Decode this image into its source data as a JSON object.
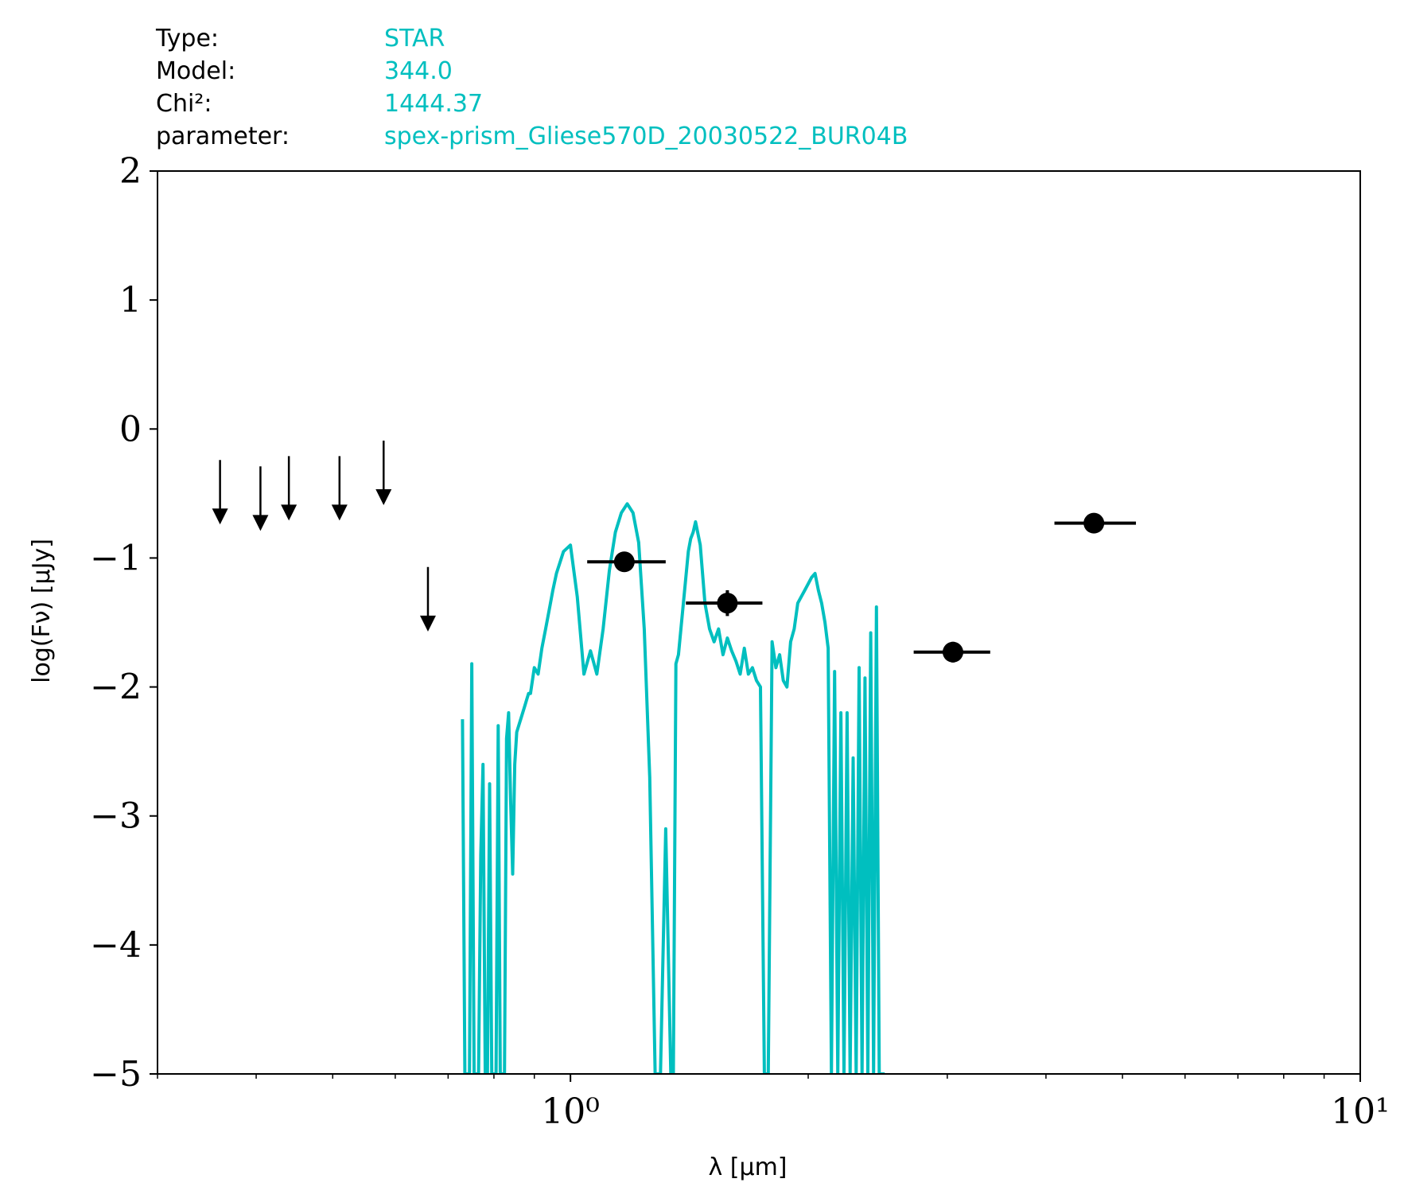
{
  "info": {
    "rows": [
      {
        "label": "Type:",
        "value": "STAR"
      },
      {
        "label": "Model:",
        "value": "344.0"
      },
      {
        "label": "Chi²:",
        "value": "1444.37"
      },
      {
        "label": "parameter:",
        "value": "spex-prism_Gliese570D_20030522_BUR04B"
      }
    ],
    "value_color": "#00bfbf"
  },
  "chart_data": {
    "type": "line",
    "title": "",
    "xlabel": "λ [μm]",
    "ylabel": "log(Fν) [μJy]",
    "xscale": "log",
    "xlim": [
      0.3,
      10
    ],
    "ylim": [
      -5,
      2
    ],
    "x_ticks": [
      {
        "value": 1,
        "label": "10⁰"
      },
      {
        "value": 10,
        "label": "10¹"
      }
    ],
    "y_ticks": [
      2,
      1,
      0,
      -1,
      -2,
      -3,
      -4,
      -5
    ],
    "y_tick_labels": [
      "2",
      "1",
      "0",
      "−1",
      "−2",
      "−3",
      "−4",
      "−5"
    ],
    "grid": false,
    "model_color": "#00bfbf",
    "model": {
      "x": [
        0.73,
        0.735,
        0.74,
        0.745,
        0.75,
        0.755,
        0.76,
        0.765,
        0.77,
        0.775,
        0.78,
        0.785,
        0.79,
        0.795,
        0.8,
        0.805,
        0.81,
        0.815,
        0.82,
        0.825,
        0.83,
        0.835,
        0.84,
        0.845,
        0.85,
        0.855,
        0.86,
        0.865,
        0.87,
        0.875,
        0.88,
        0.885,
        0.89,
        0.9,
        0.91,
        0.92,
        0.93,
        0.94,
        0.95,
        0.96,
        0.98,
        1.0,
        1.02,
        1.04,
        1.06,
        1.08,
        1.1,
        1.12,
        1.14,
        1.16,
        1.18,
        1.2,
        1.22,
        1.24,
        1.26,
        1.28,
        1.3,
        1.32,
        1.34,
        1.35,
        1.36,
        1.37,
        1.38,
        1.39,
        1.4,
        1.41,
        1.42,
        1.43,
        1.44,
        1.46,
        1.48,
        1.5,
        1.52,
        1.54,
        1.56,
        1.58,
        1.6,
        1.62,
        1.64,
        1.66,
        1.68,
        1.7,
        1.72,
        1.74,
        1.76,
        1.78,
        1.8,
        1.82,
        1.84,
        1.86,
        1.88,
        1.9,
        1.92,
        1.94,
        1.96,
        1.98,
        2.0,
        2.02,
        2.04,
        2.06,
        2.08,
        2.1,
        2.12,
        2.14,
        2.16,
        2.18,
        2.2,
        2.22,
        2.24,
        2.26,
        2.28,
        2.3,
        2.32,
        2.34,
        2.36,
        2.38,
        2.4,
        2.42,
        2.44,
        2.46,
        2.48,
        2.5
      ],
      "y": [
        -2.25,
        -5.0,
        -5.0,
        -5.0,
        -1.82,
        -5.0,
        -5.0,
        -5.0,
        -3.3,
        -2.6,
        -5.0,
        -5.0,
        -2.75,
        -5.0,
        -5.0,
        -5.0,
        -2.3,
        -5.0,
        -5.0,
        -5.0,
        -2.4,
        -2.2,
        -2.9,
        -3.45,
        -2.6,
        -2.35,
        -2.3,
        -2.25,
        -2.2,
        -2.15,
        -2.1,
        -2.05,
        -2.05,
        -1.85,
        -1.9,
        -1.7,
        -1.55,
        -1.4,
        -1.25,
        -1.12,
        -0.95,
        -0.9,
        -1.3,
        -1.9,
        -1.72,
        -1.9,
        -1.55,
        -1.1,
        -0.8,
        -0.65,
        -0.58,
        -0.65,
        -0.88,
        -1.55,
        -2.7,
        -5.0,
        -5.0,
        -3.1,
        -5.0,
        -5.0,
        -1.82,
        -1.75,
        -1.55,
        -1.35,
        -1.15,
        -0.95,
        -0.85,
        -0.8,
        -0.72,
        -0.9,
        -1.35,
        -1.55,
        -1.65,
        -1.55,
        -1.75,
        -1.62,
        -1.72,
        -1.8,
        -1.9,
        -1.7,
        -1.9,
        -1.85,
        -1.95,
        -2.0,
        -5.0,
        -5.0,
        -1.65,
        -1.85,
        -1.75,
        -1.95,
        -2.0,
        -1.65,
        -1.55,
        -1.35,
        -1.3,
        -1.25,
        -1.2,
        -1.15,
        -1.12,
        -1.25,
        -1.35,
        -1.5,
        -1.7,
        -5.0,
        -1.88,
        -5.0,
        -2.2,
        -5.0,
        -2.2,
        -5.0,
        -2.55,
        -5.0,
        -1.85,
        -5.0,
        -1.93,
        -5.0,
        -1.58,
        -5.0,
        -1.38,
        -5.0,
        -5.0,
        -5.0
      ]
    },
    "photometry": [
      {
        "x": 1.17,
        "y": -1.03,
        "xmin": 1.05,
        "xmax": 1.32,
        "yerr": 0.03
      },
      {
        "x": 1.58,
        "y": -1.35,
        "xmin": 1.4,
        "xmax": 1.75,
        "yerr": 0.1
      },
      {
        "x": 3.05,
        "y": -1.73,
        "xmin": 2.72,
        "xmax": 3.4,
        "yerr": 0.08
      },
      {
        "x": 4.6,
        "y": -0.73,
        "xmin": 4.1,
        "xmax": 5.2,
        "yerr": 0.02
      }
    ],
    "upper_limits": [
      {
        "x": 0.36,
        "y": -0.24
      },
      {
        "x": 0.405,
        "y": -0.29
      },
      {
        "x": 0.44,
        "y": -0.21
      },
      {
        "x": 0.51,
        "y": -0.21
      },
      {
        "x": 0.58,
        "y": -0.09
      },
      {
        "x": 0.66,
        "y": -1.07
      }
    ],
    "upper_limit_arrow_length": 0.5
  }
}
